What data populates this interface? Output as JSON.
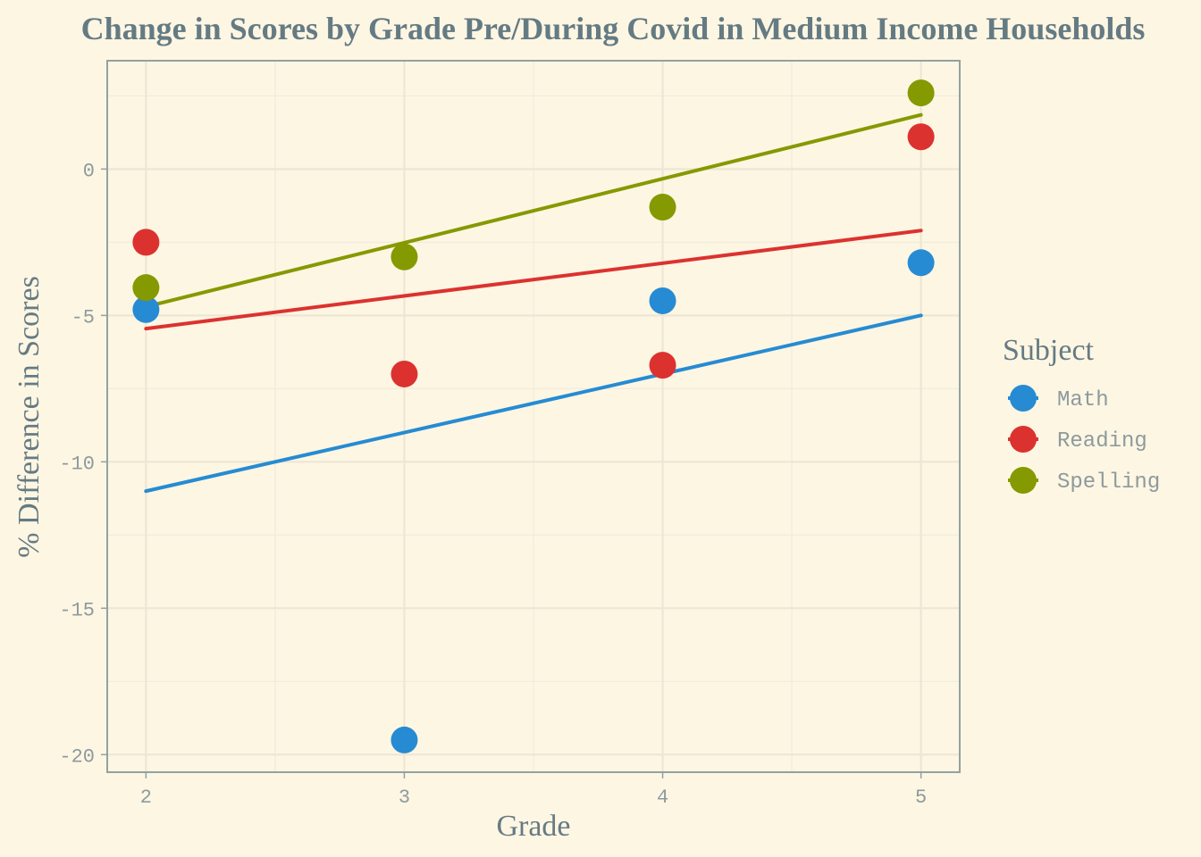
{
  "chart_data": {
    "type": "scatter",
    "title": "Change in Scores by Grade Pre/During Covid in Medium Income Households",
    "xlabel": "Grade",
    "ylabel": "% Difference in Scores",
    "xlim": [
      1.85,
      5.15
    ],
    "ylim": [
      -20.6,
      3.7
    ],
    "x_ticks": [
      2,
      3,
      4,
      5
    ],
    "y_ticks": [
      0,
      -5,
      -10,
      -15,
      -20
    ],
    "x_tick_labels": [
      "2",
      "3",
      "4",
      "5"
    ],
    "y_tick_labels": [
      "0",
      "-5",
      "-10",
      "-15",
      "-20"
    ],
    "grid": true,
    "legend": {
      "title": "Subject",
      "position": "right"
    },
    "series": [
      {
        "name": "Math",
        "color": "#268bd2",
        "points": [
          {
            "x": 2,
            "y": -4.8
          },
          {
            "x": 3,
            "y": -19.5
          },
          {
            "x": 4,
            "y": -4.5
          },
          {
            "x": 5,
            "y": -3.2
          }
        ],
        "trend": [
          [
            2,
            -11.0
          ],
          [
            5,
            -5.0
          ]
        ]
      },
      {
        "name": "Reading",
        "color": "#dc322f",
        "points": [
          {
            "x": 2,
            "y": -2.5
          },
          {
            "x": 3,
            "y": -7.0
          },
          {
            "x": 4,
            "y": -6.7
          },
          {
            "x": 5,
            "y": 1.1
          }
        ],
        "trend": [
          [
            2,
            -5.45
          ],
          [
            5,
            -2.1
          ]
        ]
      },
      {
        "name": "Spelling",
        "color": "#859900",
        "points": [
          {
            "x": 2,
            "y": -4.05
          },
          {
            "x": 3,
            "y": -3.0
          },
          {
            "x": 4,
            "y": -1.3
          },
          {
            "x": 5,
            "y": 2.6
          }
        ],
        "trend": [
          [
            2,
            -4.7
          ],
          [
            5,
            1.85
          ]
        ]
      }
    ]
  }
}
